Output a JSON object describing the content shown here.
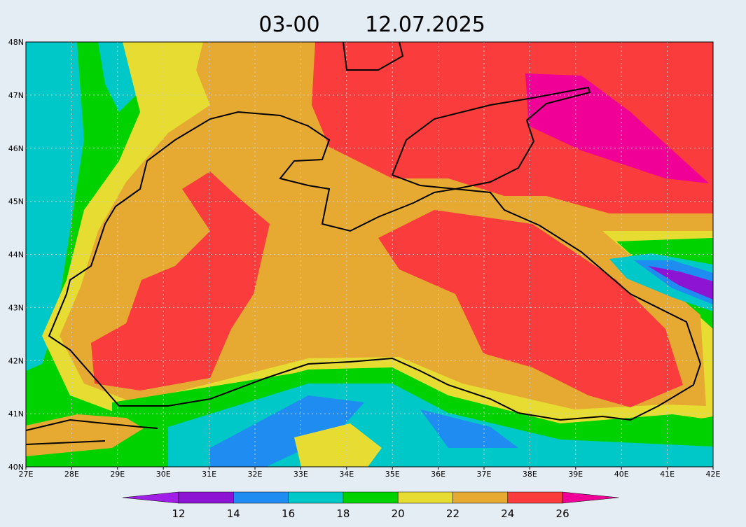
{
  "title": {
    "time": "03-00",
    "date": "12.07.2025"
  },
  "axes": {
    "x_labels": [
      "27E",
      "28E",
      "29E",
      "30E",
      "31E",
      "32E",
      "33E",
      "34E",
      "35E",
      "36E",
      "37E",
      "38E",
      "39E",
      "40E",
      "41E",
      "42E"
    ],
    "y_labels": [
      "40N",
      "41N",
      "42N",
      "43N",
      "44N",
      "45N",
      "46N",
      "47N",
      "48N"
    ]
  },
  "colorbar": {
    "labels": [
      12,
      14,
      16,
      18,
      20,
      22,
      24,
      26
    ],
    "colors": [
      "#a01ee6",
      "#8c14d2",
      "#1e8cf0",
      "#00c8c8",
      "#00d200",
      "#e6dc32",
      "#e6aa32",
      "#fa3c3c",
      "#f00096"
    ]
  }
}
